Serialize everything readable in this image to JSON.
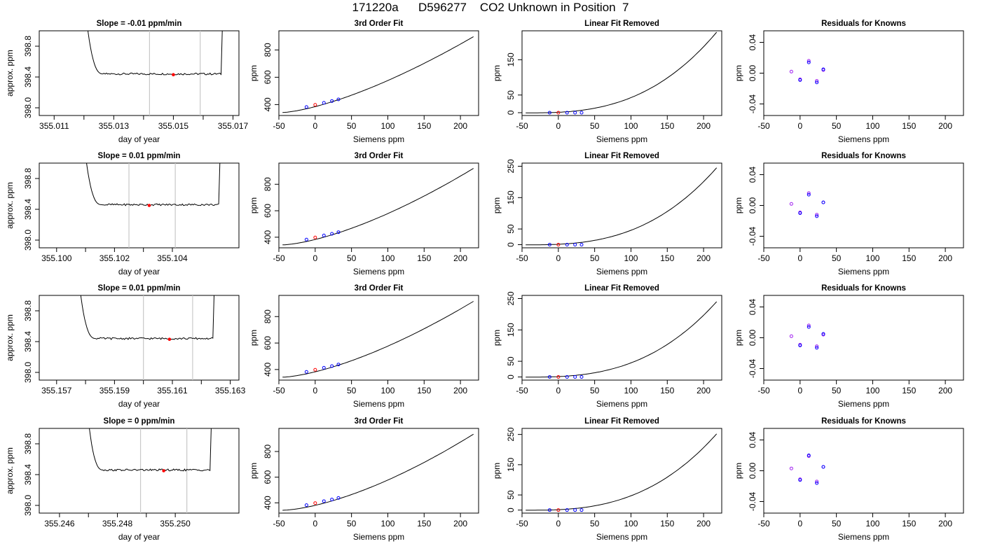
{
  "page": {
    "title": "171220a      D596277    CO2 Unknown in Position  7"
  },
  "colors": {
    "line": "#000000",
    "grid_vline": "#c8c8c8",
    "point_blue": "#0000ff",
    "point_purple": "#a020f0",
    "point_red": "#ff0000"
  },
  "chart_data": [
    {
      "type": "line",
      "row": 0,
      "col": 0,
      "title": "Slope =  -0.01  ppm/min",
      "xlabel": "day of year",
      "ylabel": "approx. ppm",
      "xlim": [
        355.0105,
        355.0172
      ],
      "ylim": [
        397.9,
        399.0
      ],
      "xtick_values": [
        355.011,
        355.013,
        355.015,
        355.017
      ],
      "xtick_labels": [
        "355.011",
        "355.013",
        "355.015",
        "355.017"
      ],
      "ytick_values": [
        398.0,
        398.4,
        398.8
      ],
      "ytick_labels": [
        "398.0",
        "398.4",
        "398.8"
      ],
      "vlines": [
        355.0142,
        355.0159
      ],
      "red_point": [
        355.015,
        398.43
      ],
      "trace": {
        "x_start": 355.0121,
        "x_end": 355.0166,
        "level": 398.44,
        "left_spike_to": 399.1,
        "right_spike_to": 399.1
      }
    },
    {
      "type": "scatter",
      "row": 0,
      "col": 1,
      "title": "3rd Order Fit",
      "xlabel": "Siemens ppm",
      "ylabel": "ppm",
      "xlim": [
        -50,
        225
      ],
      "ylim": [
        320,
        940
      ],
      "xticks": [
        -50,
        0,
        50,
        100,
        150,
        200
      ],
      "yticks": [
        400,
        600,
        800
      ],
      "points": {
        "x": [
          -12,
          0,
          12,
          23,
          32
        ],
        "y": [
          382,
          398,
          413,
          426,
          438
        ],
        "colors": [
          "blue",
          "red",
          "blue",
          "blue",
          "blue"
        ]
      },
      "curve": {
        "x_start": -45,
        "x_end": 218,
        "y_start": 342,
        "y_end": 897,
        "power": 1.45
      }
    },
    {
      "type": "scatter",
      "row": 0,
      "col": 2,
      "title": "Linear Fit Removed",
      "xlabel": "Siemens ppm",
      "ylabel": "ppm",
      "xlim": [
        -50,
        225
      ],
      "ylim": [
        -8,
        232
      ],
      "xticks": [
        -50,
        0,
        50,
        100,
        150,
        200
      ],
      "yticks": [
        0,
        50,
        150
      ],
      "points": {
        "x": [
          -12,
          0,
          12,
          23,
          32
        ],
        "y": [
          0,
          0,
          0,
          0,
          0
        ],
        "colors": [
          "blue",
          "red",
          "blue",
          "blue",
          "blue"
        ]
      },
      "curve": {
        "x_start": -45,
        "x_end": 218,
        "y_start": -0.5,
        "y_end": 228,
        "power": 2.8
      }
    },
    {
      "type": "scatter",
      "row": 0,
      "col": 3,
      "title": "Residuals for Knowns",
      "xlabel": "Siemens ppm",
      "ylabel": "ppm",
      "xlim": [
        -50,
        225
      ],
      "ylim": [
        -0.055,
        0.055
      ],
      "xticks": [
        -50,
        0,
        50,
        100,
        150,
        200
      ],
      "yticks": [
        -0.04,
        0.0,
        0.04
      ],
      "ytick_labels": [
        "-0.04",
        "0.00",
        "0.04"
      ],
      "points": {
        "x": [
          -12,
          0,
          0,
          12,
          12,
          23,
          23,
          32,
          32
        ],
        "y": [
          0.002,
          -0.008,
          -0.009,
          0.016,
          0.014,
          -0.01,
          -0.012,
          0.004,
          0.005
        ],
        "colors": [
          "purple",
          "purple",
          "blue",
          "purple",
          "blue",
          "purple",
          "blue",
          "purple",
          "blue"
        ]
      }
    },
    {
      "type": "line",
      "row": 1,
      "col": 0,
      "title": "Slope =  0.01  ppm/min",
      "xlabel": "day of year",
      "ylabel": "approx. ppm",
      "xlim": [
        355.0994,
        355.1063
      ],
      "ylim": [
        397.9,
        399.0
      ],
      "xtick_values": [
        355.1,
        355.102,
        355.104
      ],
      "xtick_labels": [
        "355.100",
        "355.102",
        "355.104"
      ],
      "ytick_values": [
        398.0,
        398.4,
        398.8
      ],
      "ytick_labels": [
        "398.0",
        "398.4",
        "398.8"
      ],
      "vlines": [
        355.1025,
        355.1041
      ],
      "red_point": [
        355.1032,
        398.45
      ],
      "trace": {
        "x_start": 355.101,
        "x_end": 355.1056,
        "level": 398.46,
        "left_spike_to": 399.1,
        "right_spike_to": 399.1
      }
    },
    {
      "type": "scatter",
      "row": 1,
      "col": 1,
      "title": "3rd Order Fit",
      "xlabel": "Siemens ppm",
      "ylabel": "ppm",
      "xlim": [
        -50,
        225
      ],
      "ylim": [
        320,
        960
      ],
      "xticks": [
        -50,
        0,
        50,
        100,
        150,
        200
      ],
      "yticks": [
        400,
        600,
        800
      ],
      "points": {
        "x": [
          -12,
          0,
          12,
          23,
          32
        ],
        "y": [
          382,
          398,
          413,
          426,
          438
        ],
        "colors": [
          "blue",
          "red",
          "blue",
          "blue",
          "blue"
        ]
      },
      "curve": {
        "x_start": -45,
        "x_end": 218,
        "y_start": 342,
        "y_end": 920,
        "power": 1.5
      }
    },
    {
      "type": "scatter",
      "row": 1,
      "col": 2,
      "title": "Linear Fit Removed",
      "xlabel": "Siemens ppm",
      "ylabel": "ppm",
      "xlim": [
        -50,
        225
      ],
      "ylim": [
        -10,
        260
      ],
      "xticks": [
        -50,
        0,
        50,
        100,
        150,
        200
      ],
      "yticks": [
        0,
        50,
        150,
        250
      ],
      "points": {
        "x": [
          -12,
          0,
          12,
          23,
          32
        ],
        "y": [
          0,
          0,
          0,
          0,
          0
        ],
        "colors": [
          "blue",
          "red",
          "blue",
          "blue",
          "blue"
        ]
      },
      "curve": {
        "x_start": -45,
        "x_end": 218,
        "y_start": -0.5,
        "y_end": 245,
        "power": 2.8
      }
    },
    {
      "type": "scatter",
      "row": 1,
      "col": 3,
      "title": "Residuals for Knowns",
      "xlabel": "Siemens ppm",
      "ylabel": "ppm",
      "xlim": [
        -50,
        225
      ],
      "ylim": [
        -0.055,
        0.055
      ],
      "xticks": [
        -50,
        0,
        50,
        100,
        150,
        200
      ],
      "yticks": [
        -0.04,
        0.0,
        0.04
      ],
      "ytick_labels": [
        "-0.04",
        "0.00",
        "0.04"
      ],
      "points": {
        "x": [
          -12,
          0,
          0,
          12,
          12,
          23,
          23,
          32,
          32
        ],
        "y": [
          0.002,
          -0.009,
          -0.01,
          0.016,
          0.014,
          -0.012,
          -0.014,
          0.004,
          0.004
        ],
        "colors": [
          "purple",
          "purple",
          "blue",
          "purple",
          "blue",
          "purple",
          "blue",
          "purple",
          "blue"
        ]
      }
    },
    {
      "type": "line",
      "row": 2,
      "col": 0,
      "title": "Slope =  0.01  ppm/min",
      "xlabel": "day of year",
      "ylabel": "approx. ppm",
      "xlim": [
        355.1564,
        355.1633
      ],
      "ylim": [
        397.9,
        399.0
      ],
      "xtick_values": [
        355.157,
        355.159,
        355.161,
        355.163
      ],
      "xtick_labels": [
        "355.157",
        "355.159",
        "355.161",
        "355.163"
      ],
      "ytick_values": [
        398.0,
        398.4,
        398.8
      ],
      "ytick_labels": [
        "398.0",
        "398.4",
        "398.8"
      ],
      "vlines": [
        355.16,
        355.1617
      ],
      "red_point": [
        355.1609,
        398.43
      ],
      "trace": {
        "x_start": 355.1578,
        "x_end": 355.1624,
        "level": 398.44,
        "left_spike_to": 399.1,
        "right_spike_to": 399.1
      }
    },
    {
      "type": "scatter",
      "row": 2,
      "col": 1,
      "title": "3rd Order Fit",
      "xlabel": "Siemens ppm",
      "ylabel": "ppm",
      "xlim": [
        -50,
        225
      ],
      "ylim": [
        320,
        960
      ],
      "xticks": [
        -50,
        0,
        50,
        100,
        150,
        200
      ],
      "yticks": [
        400,
        600,
        800
      ],
      "points": {
        "x": [
          -12,
          0,
          12,
          23,
          32
        ],
        "y": [
          382,
          398,
          413,
          426,
          438
        ],
        "colors": [
          "blue",
          "red",
          "blue",
          "blue",
          "blue"
        ]
      },
      "curve": {
        "x_start": -45,
        "x_end": 218,
        "y_start": 342,
        "y_end": 915,
        "power": 1.5
      }
    },
    {
      "type": "scatter",
      "row": 2,
      "col": 2,
      "title": "Linear Fit Removed",
      "xlabel": "Siemens ppm",
      "ylabel": "ppm",
      "xlim": [
        -50,
        225
      ],
      "ylim": [
        -10,
        260
      ],
      "xticks": [
        -50,
        0,
        50,
        100,
        150,
        200
      ],
      "yticks": [
        0,
        50,
        150,
        250
      ],
      "points": {
        "x": [
          -12,
          0,
          12,
          23,
          32
        ],
        "y": [
          0,
          0,
          0,
          0,
          0
        ],
        "colors": [
          "blue",
          "red",
          "blue",
          "blue",
          "blue"
        ]
      },
      "curve": {
        "x_start": -45,
        "x_end": 218,
        "y_start": -0.5,
        "y_end": 240,
        "power": 2.8
      }
    },
    {
      "type": "scatter",
      "row": 2,
      "col": 3,
      "title": "Residuals for Knowns",
      "xlabel": "Siemens ppm",
      "ylabel": "ppm",
      "xlim": [
        -50,
        225
      ],
      "ylim": [
        -0.055,
        0.055
      ],
      "xticks": [
        -50,
        0,
        50,
        100,
        150,
        200
      ],
      "yticks": [
        -0.04,
        0.0,
        0.04
      ],
      "ytick_labels": [
        "-0.04",
        "0.00",
        "0.04"
      ],
      "points": {
        "x": [
          -12,
          0,
          0,
          12,
          12,
          23,
          23,
          32,
          32
        ],
        "y": [
          0.002,
          -0.009,
          -0.01,
          0.016,
          0.014,
          -0.011,
          -0.013,
          0.004,
          0.005
        ],
        "colors": [
          "purple",
          "purple",
          "blue",
          "purple",
          "blue",
          "purple",
          "blue",
          "purple",
          "blue"
        ]
      }
    },
    {
      "type": "line",
      "row": 3,
      "col": 0,
      "title": "Slope =  0  ppm/min",
      "xlabel": "day of year",
      "ylabel": "approx. ppm",
      "xlim": [
        355.2453,
        355.2522
      ],
      "ylim": [
        397.9,
        399.0
      ],
      "xtick_values": [
        355.246,
        355.248,
        355.25
      ],
      "xtick_labels": [
        "355.246",
        "355.248",
        "355.250"
      ],
      "ytick_values": [
        398.0,
        398.4,
        398.8
      ],
      "ytick_labels": [
        "398.0",
        "398.4",
        "398.8"
      ],
      "vlines": [
        355.2488,
        355.2504
      ],
      "red_point": [
        355.2496,
        398.45
      ],
      "trace": {
        "x_start": 355.247,
        "x_end": 355.2512,
        "level": 398.46,
        "left_spike_to": 399.1,
        "right_spike_to": 399.1
      }
    },
    {
      "type": "scatter",
      "row": 3,
      "col": 1,
      "title": "3rd Order Fit",
      "xlabel": "Siemens ppm",
      "ylabel": "ppm",
      "xlim": [
        -50,
        225
      ],
      "ylim": [
        320,
        980
      ],
      "xticks": [
        -50,
        0,
        50,
        100,
        150,
        200
      ],
      "yticks": [
        400,
        600,
        800
      ],
      "points": {
        "x": [
          -12,
          0,
          12,
          23,
          32
        ],
        "y": [
          382,
          398,
          413,
          426,
          438
        ],
        "colors": [
          "blue",
          "red",
          "blue",
          "blue",
          "blue"
        ]
      },
      "curve": {
        "x_start": -45,
        "x_end": 218,
        "y_start": 342,
        "y_end": 935,
        "power": 1.55
      }
    },
    {
      "type": "scatter",
      "row": 3,
      "col": 2,
      "title": "Linear Fit Removed",
      "xlabel": "Siemens ppm",
      "ylabel": "ppm",
      "xlim": [
        -50,
        225
      ],
      "ylim": [
        -10,
        270
      ],
      "xticks": [
        -50,
        0,
        50,
        100,
        150,
        200
      ],
      "yticks": [
        0,
        50,
        150,
        250
      ],
      "points": {
        "x": [
          -12,
          0,
          12,
          23,
          32
        ],
        "y": [
          0,
          0,
          0,
          0,
          0
        ],
        "colors": [
          "blue",
          "red",
          "blue",
          "blue",
          "blue"
        ]
      },
      "curve": {
        "x_start": -45,
        "x_end": 218,
        "y_start": -0.5,
        "y_end": 252,
        "power": 2.8
      }
    },
    {
      "type": "scatter",
      "row": 3,
      "col": 3,
      "title": "Residuals for Knowns",
      "xlabel": "Siemens ppm",
      "ylabel": "ppm",
      "xlim": [
        -50,
        225
      ],
      "ylim": [
        -0.055,
        0.055
      ],
      "xticks": [
        -50,
        0,
        50,
        100,
        150,
        200
      ],
      "yticks": [
        -0.04,
        0.0,
        0.04
      ],
      "ytick_labels": [
        "-0.04",
        "0.00",
        "0.04"
      ],
      "points": {
        "x": [
          -12,
          0,
          0,
          12,
          12,
          23,
          23,
          32,
          32
        ],
        "y": [
          0.003,
          -0.011,
          -0.012,
          0.019,
          0.02,
          -0.014,
          -0.016,
          0.005,
          0.005
        ],
        "colors": [
          "purple",
          "purple",
          "blue",
          "purple",
          "blue",
          "purple",
          "blue",
          "purple",
          "blue"
        ]
      }
    }
  ]
}
